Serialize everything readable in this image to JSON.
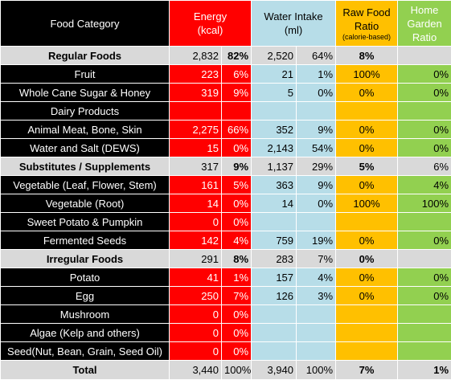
{
  "header": {
    "category": "Food Category",
    "energy_line1": "Energy",
    "energy_line2": "(kcal)",
    "water_line1": "Water Intake",
    "water_line2": "(ml)",
    "raw_line1": "Raw Food",
    "raw_line2": "Ratio",
    "raw_line3": "(calorie-based)",
    "home_line1": "Home",
    "home_line2": "Garden",
    "home_line3": "Ratio"
  },
  "rows": [
    {
      "type": "group",
      "name": "Regular Foods",
      "energy": "2,832",
      "energy_pct": "82%",
      "water": "2,520",
      "water_pct": "64%",
      "raw": "8%",
      "home": ""
    },
    {
      "type": "item",
      "name": "Fruit",
      "energy": "223",
      "energy_pct": "6%",
      "water": "21",
      "water_pct": "1%",
      "raw": "100%",
      "home": "0%"
    },
    {
      "type": "item",
      "name": "Whole Cane Sugar & Honey",
      "energy": "319",
      "energy_pct": "9%",
      "water": "5",
      "water_pct": "0%",
      "raw": "0%",
      "home": "0%"
    },
    {
      "type": "item",
      "name": "Dairy Products",
      "energy": "",
      "energy_pct": "",
      "water": "",
      "water_pct": "",
      "raw": "",
      "home": ""
    },
    {
      "type": "item",
      "name": "Animal Meat, Bone, Skin",
      "energy": "2,275",
      "energy_pct": "66%",
      "water": "352",
      "water_pct": "9%",
      "raw": "0%",
      "home": "0%"
    },
    {
      "type": "item",
      "name": "Water and Salt (DEWS)",
      "energy": "15",
      "energy_pct": "0%",
      "water": "2,143",
      "water_pct": "54%",
      "raw": "0%",
      "home": "0%"
    },
    {
      "type": "group",
      "name": "Substitutes / Supplements",
      "energy": "317",
      "energy_pct": "9%",
      "water": "1,137",
      "water_pct": "29%",
      "raw": "5%",
      "home": "6%"
    },
    {
      "type": "item",
      "name": "Vegetable (Leaf, Flower, Stem)",
      "energy": "161",
      "energy_pct": "5%",
      "water": "363",
      "water_pct": "9%",
      "raw": "0%",
      "home": "4%"
    },
    {
      "type": "item",
      "name": "Vegetable (Root)",
      "energy": "14",
      "energy_pct": "0%",
      "water": "14",
      "water_pct": "0%",
      "raw": "100%",
      "home": "100%"
    },
    {
      "type": "item",
      "name": "Sweet Potato & Pumpkin",
      "energy": "0",
      "energy_pct": "0%",
      "water": "",
      "water_pct": "",
      "raw": "",
      "home": ""
    },
    {
      "type": "item",
      "name": "Fermented Seeds",
      "energy": "142",
      "energy_pct": "4%",
      "water": "759",
      "water_pct": "19%",
      "raw": "0%",
      "home": "0%"
    },
    {
      "type": "group",
      "name": "Irregular Foods",
      "energy": "291",
      "energy_pct": "8%",
      "water": "283",
      "water_pct": "7%",
      "raw": "0%",
      "home": ""
    },
    {
      "type": "item",
      "name": "Potato",
      "energy": "41",
      "energy_pct": "1%",
      "water": "157",
      "water_pct": "4%",
      "raw": "0%",
      "home": "0%"
    },
    {
      "type": "item",
      "name": "Egg",
      "energy": "250",
      "energy_pct": "7%",
      "water": "126",
      "water_pct": "3%",
      "raw": "0%",
      "home": "0%"
    },
    {
      "type": "item",
      "name": "Mushroom",
      "energy": "0",
      "energy_pct": "0%",
      "water": "",
      "water_pct": "",
      "raw": "",
      "home": ""
    },
    {
      "type": "item",
      "name": "Algae (Kelp and others)",
      "energy": "0",
      "energy_pct": "0%",
      "water": "",
      "water_pct": "",
      "raw": "",
      "home": ""
    },
    {
      "type": "item",
      "name": "Seed(Nut, Bean, Grain, Seed Oil)",
      "energy": "0",
      "energy_pct": "0%",
      "water": "",
      "water_pct": "",
      "raw": "",
      "home": ""
    },
    {
      "type": "total",
      "name": "Total",
      "energy": "3,440",
      "energy_pct": "100%",
      "water": "3,940",
      "water_pct": "100%",
      "raw": "7%",
      "home": "1%"
    }
  ],
  "colors": {
    "category": "#000000",
    "energy": "#ff0000",
    "water": "#b7dde8",
    "raw": "#ffc000",
    "home": "#92d050",
    "group": "#d9d9d9"
  }
}
